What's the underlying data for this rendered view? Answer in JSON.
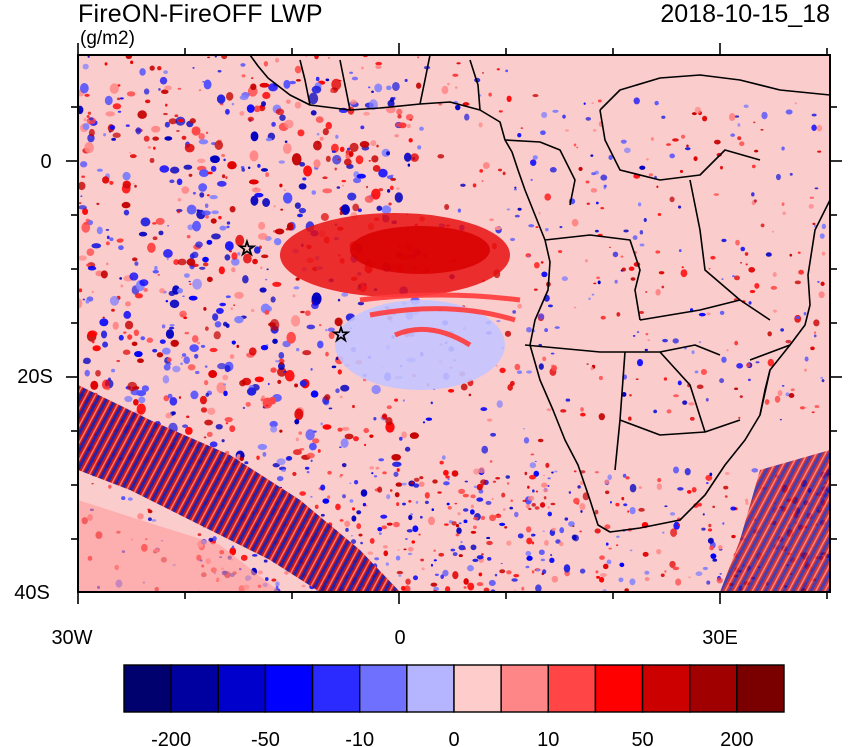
{
  "title": "FireON-FireOFF LWP",
  "units": "(g/m2)",
  "datetime": "2018-10-15_18",
  "map": {
    "lat_labels": [
      "0",
      "20S",
      "40S"
    ],
    "lon_labels": [
      "30W",
      "0",
      "30E"
    ],
    "background_color": "#fbcccc"
  },
  "colorbar": {
    "colors": [
      "#00006e",
      "#0000a0",
      "#0000cd",
      "#0000ff",
      "#2b2bff",
      "#7070ff",
      "#b4b4ff",
      "#ffcccc",
      "#ff8686",
      "#ff4545",
      "#ff0000",
      "#cd0000",
      "#a00000",
      "#7a0000"
    ],
    "labels": [
      "-200",
      "-50",
      "-10",
      "0",
      "10",
      "50",
      "200"
    ]
  }
}
